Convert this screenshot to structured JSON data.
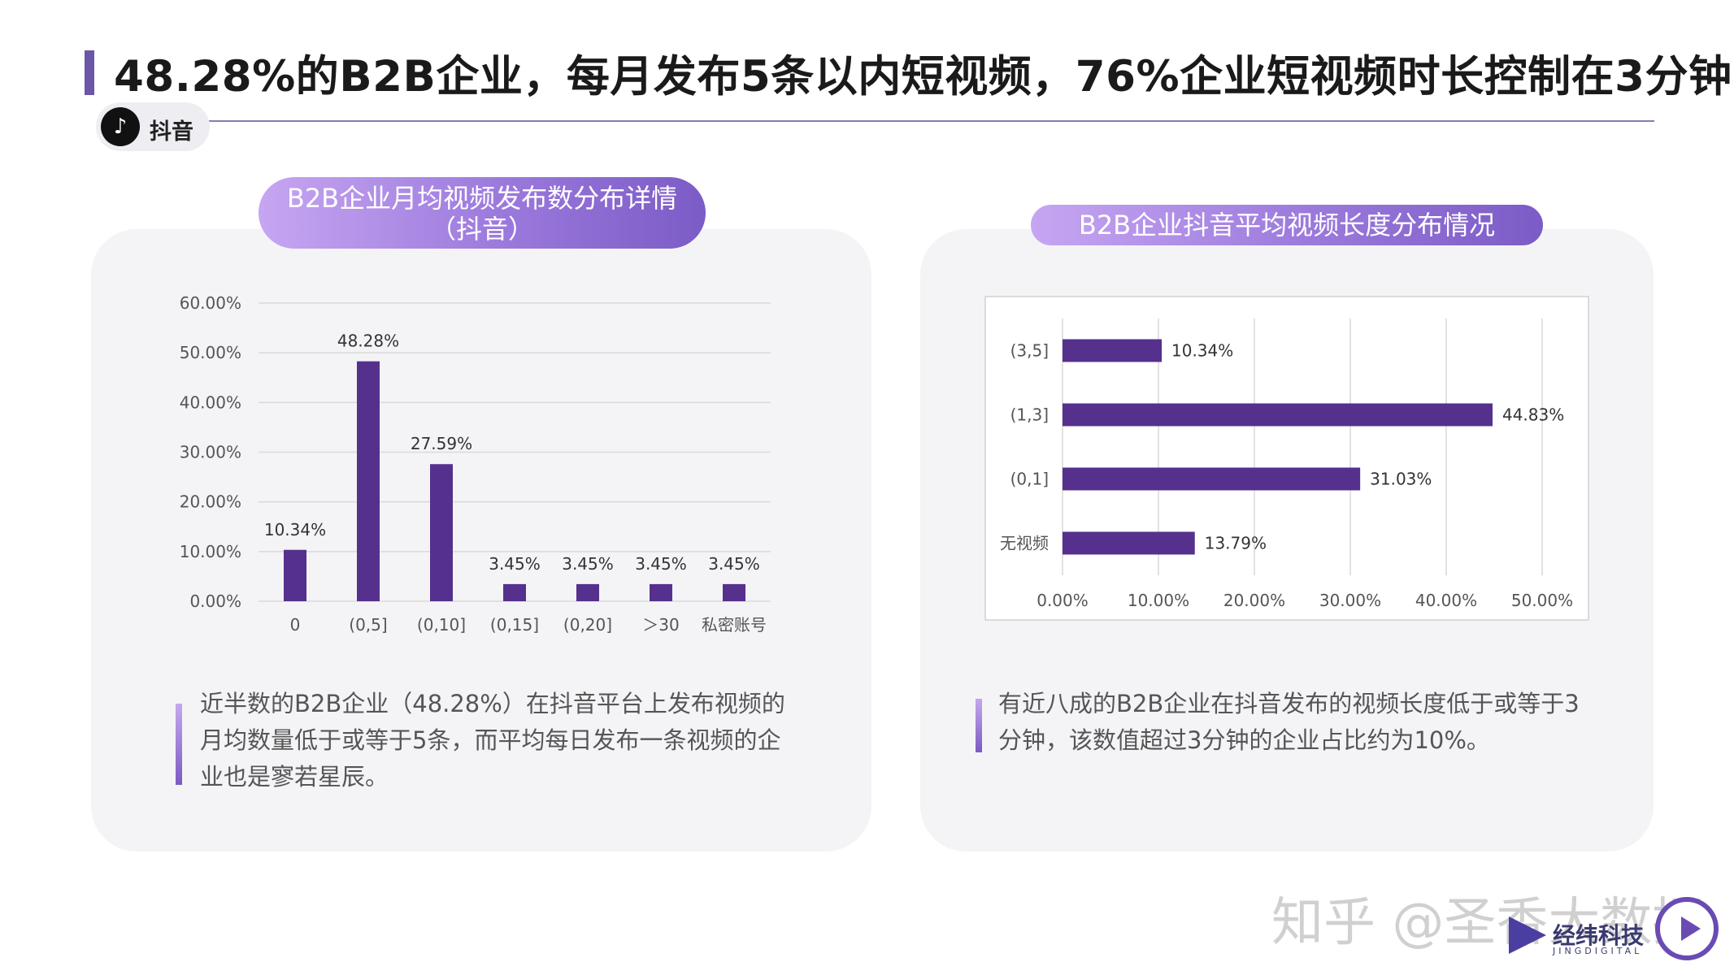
{
  "header": {
    "title": "48.28%的B2B企业，每月发布5条以内短视频，76%企业短视频时长控制在3分钟",
    "platform": "抖音",
    "accent_color": "#6b57a8",
    "icon": "tiktok-icon"
  },
  "left_panel": {
    "title_line1": "B2B企业月均视频发布数分布详情",
    "title_line2": "（抖音）",
    "note": "近半数的B2B企业（48.28%）在抖音平台上发布视频的月均数量低于或等于5条，而平均每日发布一条视频的企业也是寥若星辰。"
  },
  "right_panel": {
    "title": "B2B企业抖音平均视频长度分布情况",
    "note": "有近八成的B2B企业在抖音发布的视频长度低于或等于3分钟，该数值超过3分钟的企业占比约为10%。"
  },
  "chart_data": [
    {
      "type": "bar",
      "orientation": "vertical",
      "categories": [
        "0",
        "(0,5]",
        "(0,10]",
        "(0,15]",
        "(0,20]",
        "＞30",
        "私密账号"
      ],
      "values": [
        10.34,
        48.28,
        27.59,
        3.45,
        3.45,
        3.45,
        3.45
      ],
      "data_labels": [
        "10.34%",
        "48.28%",
        "27.59%",
        "3.45%",
        "3.45%",
        "3.45%",
        "3.45%"
      ],
      "ylim": [
        0,
        60
      ],
      "yticks": [
        "0.00%",
        "10.00%",
        "20.00%",
        "30.00%",
        "40.00%",
        "50.00%",
        "60.00%"
      ],
      "grid": true,
      "bar_color": "#55308d"
    },
    {
      "type": "bar",
      "orientation": "horizontal",
      "categories": [
        "(3,5]",
        "(1,3]",
        "(0,1]",
        "无视频"
      ],
      "values": [
        10.34,
        44.83,
        31.03,
        13.79
      ],
      "data_labels": [
        "10.34%",
        "44.83%",
        "31.03%",
        "13.79%"
      ],
      "xlim": [
        0,
        50
      ],
      "xticks": [
        "0.00%",
        "10.00%",
        "20.00%",
        "30.00%",
        "40.00%",
        "50.00%"
      ],
      "grid": true,
      "bar_color": "#55308d"
    }
  ],
  "footer": {
    "watermark": "知乎 @圣香大数据",
    "logo_text": "经纬科技",
    "logo_sub": "JINGDIGITAL"
  }
}
